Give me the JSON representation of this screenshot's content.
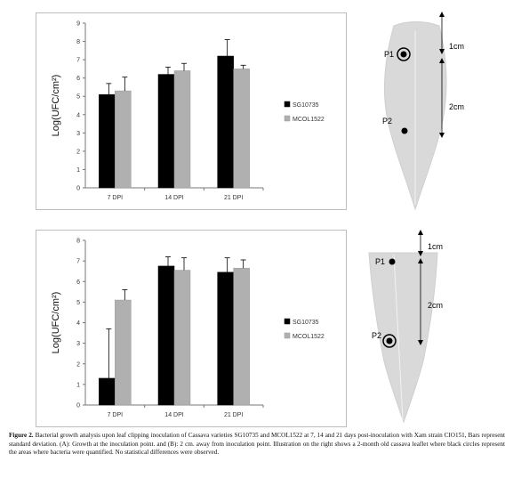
{
  "panel_labels": [
    "A",
    "B"
  ],
  "chart_data": [
    {
      "type": "bar",
      "panel": "A",
      "categories": [
        "7 DPI",
        "14 DPI",
        "21 DPI"
      ],
      "series": [
        {
          "name": "SG10735",
          "values": [
            5.1,
            6.2,
            7.2
          ],
          "errors": [
            0.6,
            0.4,
            0.9
          ],
          "color": "#000000"
        },
        {
          "name": "MCOL1522",
          "values": [
            5.3,
            6.4,
            6.5
          ],
          "errors": [
            0.75,
            0.4,
            0.2
          ],
          "color": "#b0b0b0"
        }
      ],
      "ylabel": "Log(UFC/cm²)",
      "ylim": [
        0,
        9
      ],
      "yticks": [
        "0",
        "1",
        "2",
        "3",
        "4",
        "5",
        "6",
        "7",
        "8",
        "9"
      ],
      "grid": false,
      "legend": "right"
    },
    {
      "type": "bar",
      "panel": "B",
      "categories": [
        "7 DPI",
        "14 DPI",
        "21 DPI"
      ],
      "series": [
        {
          "name": "SG10735",
          "values": [
            1.3,
            6.75,
            6.45
          ],
          "errors": [
            2.4,
            0.45,
            0.7
          ],
          "color": "#000000"
        },
        {
          "name": "MCOL1522",
          "values": [
            5.1,
            6.55,
            6.65
          ],
          "errors": [
            0.5,
            0.6,
            0.4
          ],
          "color": "#b0b0b0"
        }
      ],
      "ylabel": "Log(UFC/cm²)",
      "ylim": [
        0,
        8
      ],
      "yticks": [
        "0",
        "1",
        "2",
        "3",
        "4",
        "5",
        "6",
        "7",
        "8"
      ],
      "grid": false,
      "legend": "right"
    }
  ],
  "leaf_a": {
    "points": [
      "P1",
      "P2"
    ],
    "circled": "P1",
    "dims": [
      "1cm",
      "2cm"
    ]
  },
  "leaf_b": {
    "points": [
      "P1",
      "P2"
    ],
    "circled": "P2",
    "dims": [
      "1cm",
      "2cm"
    ]
  },
  "caption": {
    "label": "Figure 2.",
    "text": "Bacterial growth analysis upon leaf clipping inoculation of Cassava varieties SG10735 and MCOL1522 at 7, 14 and 21 days post-inoculation with Xam strain CIO151, Bars represent standard deviation. (A): Growth at the inoculation point. and (B): 2 cm. away from inoculation point. Illustration on the right shows a 2-month old cassava leaflet where black circles represent the areas where bacteria were quantified. No statistical differences were observed."
  }
}
